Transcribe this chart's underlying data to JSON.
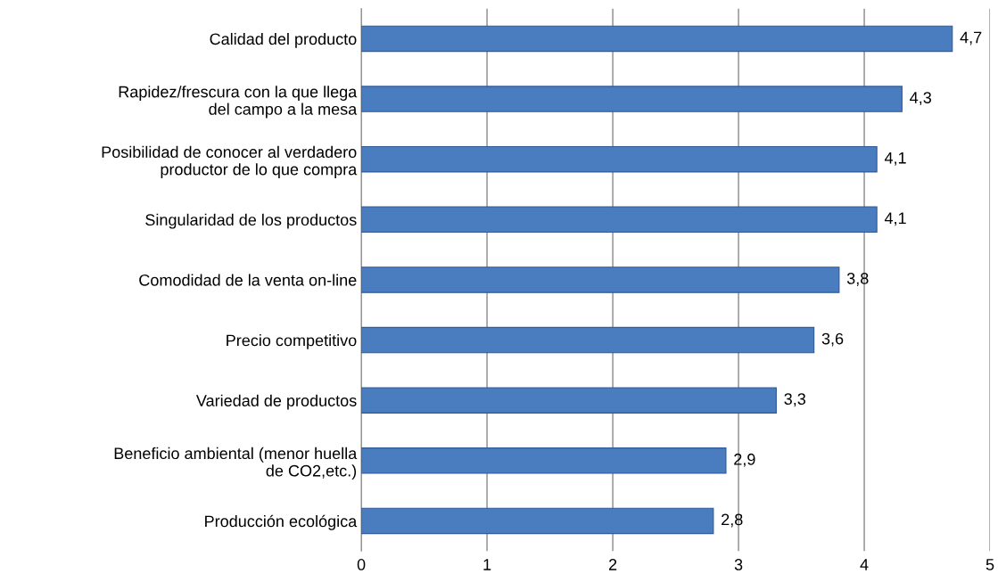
{
  "chart_data": {
    "type": "bar",
    "orientation": "horizontal",
    "categories": [
      "Calidad del producto",
      "Rapidez/frescura con la que llega\ndel campo a la mesa",
      "Posibilidad de conocer al verdadero\nproductor de lo que compra",
      "Singularidad de los productos",
      "Comodidad de la venta on-line",
      "Precio competitivo",
      "Variedad de productos",
      "Beneficio ambiental (menor huella\nde CO2,etc.)",
      "Producción ecológica"
    ],
    "values": [
      4.7,
      4.3,
      4.1,
      4.1,
      3.8,
      3.6,
      3.3,
      2.9,
      2.8
    ],
    "value_labels": [
      "4,7",
      "4,3",
      "4,1",
      "4,1",
      "3,8",
      "3,6",
      "3,3",
      "2,9",
      "2,8"
    ],
    "color": "#4a7cc0",
    "xlim": [
      0,
      5
    ],
    "xticks": [
      0,
      1,
      2,
      3,
      4,
      5
    ],
    "grid": "x",
    "legend": false
  }
}
